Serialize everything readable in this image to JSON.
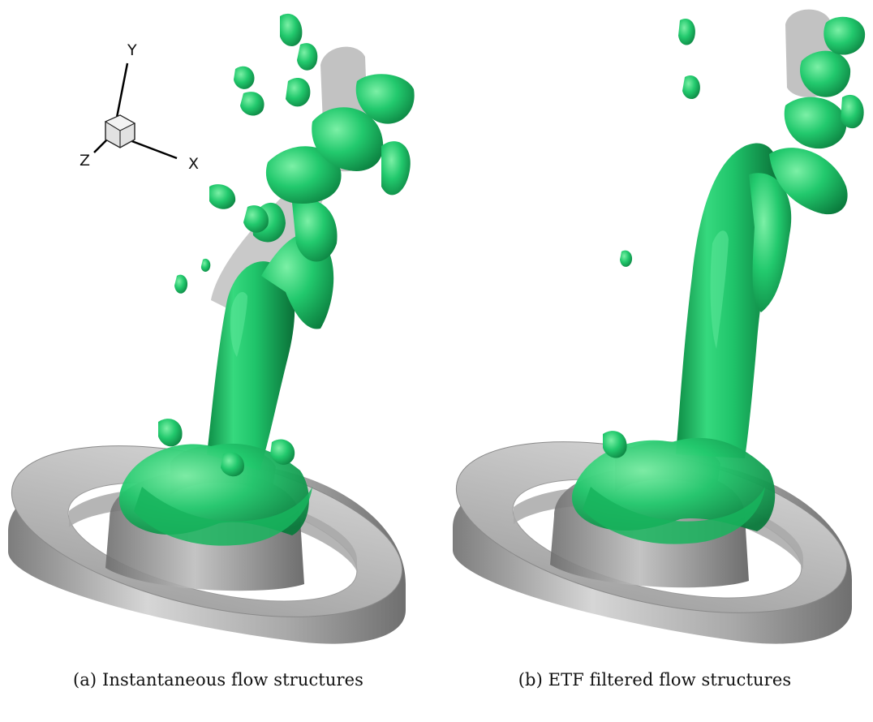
{
  "axes_triad": {
    "x": "X",
    "y": "Y",
    "z": "Z"
  },
  "panels": [
    {
      "id": "a",
      "caption": "(a) Instantaneous flow structures"
    },
    {
      "id": "b",
      "caption": "(b) ETF filtered flow structures"
    }
  ],
  "colors": {
    "vortex_green": "#1fc46a",
    "vortex_highlight": "#7cf0a6",
    "vortex_shadow": "#0a7a3c",
    "ring_gray": "#b7b7b7",
    "core_gray": "#8c8c8c"
  }
}
